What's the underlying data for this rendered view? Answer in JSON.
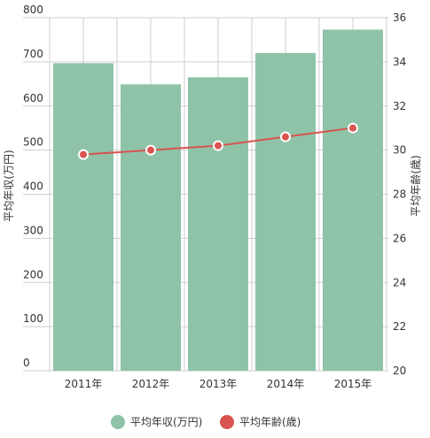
{
  "chart_data": {
    "type": "bar",
    "categories": [
      "2011年",
      "2012年",
      "2013年",
      "2014年",
      "2015年"
    ],
    "series": [
      {
        "name": "平均年収(万円)",
        "type": "bar",
        "axis": "left",
        "color": "#8fc3a8",
        "values": [
          697,
          649,
          665,
          720,
          773
        ]
      },
      {
        "name": "平均年齢(歳)",
        "type": "line",
        "axis": "right",
        "color": "#d9534f",
        "values": [
          29.8,
          30.0,
          30.2,
          30.6,
          31.0
        ]
      }
    ],
    "y_left": {
      "label": "平均年収(万円)",
      "ylim": [
        0,
        800
      ],
      "ticks": [
        "0",
        "100",
        "200",
        "300",
        "400",
        "500",
        "600",
        "700",
        "800"
      ]
    },
    "y_right": {
      "label": "平均年齢(歳)",
      "ylim": [
        20,
        36
      ],
      "ticks": [
        "20",
        "22",
        "24",
        "26",
        "28",
        "30",
        "32",
        "34",
        "36"
      ]
    },
    "grid": true,
    "legend_position": "bottom"
  }
}
